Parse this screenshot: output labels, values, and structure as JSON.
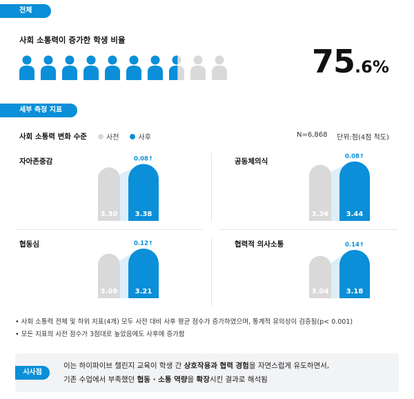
{
  "overall": {
    "tag": "전체",
    "title": "사회 소통력이 증가한 학생 비율",
    "pct_int": "75",
    "pct_dec": ".6",
    "pct_unit": "%",
    "icons_total": 10,
    "pct_value": 75.6,
    "color_fill": "#0a8fd8",
    "color_empty": "#d9d9d9"
  },
  "detail": {
    "tag": "세부 측정 지표",
    "title": "사회 소통력 변화 수준",
    "legend_pre": "사전",
    "legend_post": "사후",
    "n_label": "N=6,868",
    "unit_label": "단위:점(4점 척도)"
  },
  "chart_data": [
    {
      "type": "bar",
      "title": "자아존중감",
      "categories": [
        "사전",
        "사후"
      ],
      "values": [
        3.3,
        3.38
      ],
      "value_labels": [
        "3.30",
        "3.38"
      ],
      "change_label": "0.08↑",
      "ylim": [
        0,
        4
      ]
    },
    {
      "type": "bar",
      "title": "공동체의식",
      "categories": [
        "사전",
        "사후"
      ],
      "values": [
        3.36,
        3.44
      ],
      "value_labels": [
        "3.36",
        "3.44"
      ],
      "change_label": "0.08↑",
      "ylim": [
        0,
        4
      ]
    },
    {
      "type": "bar",
      "title": "협동심",
      "categories": [
        "사전",
        "사후"
      ],
      "values": [
        3.09,
        3.21
      ],
      "value_labels": [
        "3.09",
        "3.21"
      ],
      "change_label": "0.12↑",
      "ylim": [
        0,
        4
      ]
    },
    {
      "type": "bar",
      "title": "협력적 의사소통",
      "categories": [
        "사전",
        "사후"
      ],
      "values": [
        3.04,
        3.18
      ],
      "value_labels": [
        "3.04",
        "3.18"
      ],
      "change_label": "0.14↑",
      "ylim": [
        0,
        4
      ]
    }
  ],
  "colors": {
    "pre": "#d9d9d9",
    "post": "#0a8fd8",
    "post_shadow": "#dbeef9"
  },
  "notes": [
    "• 사회 소통력 전체 및 하위 지표(4개) 모두 사전 대비 사후 평균 점수가 증가하였으며, 통계적 유의성이 검증됨(p< 0.001)",
    "• 모든 지표의 사전 점수가 3점대로 높았음에도 사후에 증가함"
  ],
  "insight": {
    "tag": "시사점",
    "line1_a": "이는 하이파이브 챌린지 교육이 학생 간 ",
    "line1_b": "상호작용과 협력 경험",
    "line1_c": "을 자연스럽게 유도하면서,",
    "line2_a": "기존 수업에서 부족했던 ",
    "line2_b": "협동 · 소통 역량",
    "line2_c": "을 ",
    "line2_d": "확장",
    "line2_e": "시킨 결과로 해석됨"
  }
}
